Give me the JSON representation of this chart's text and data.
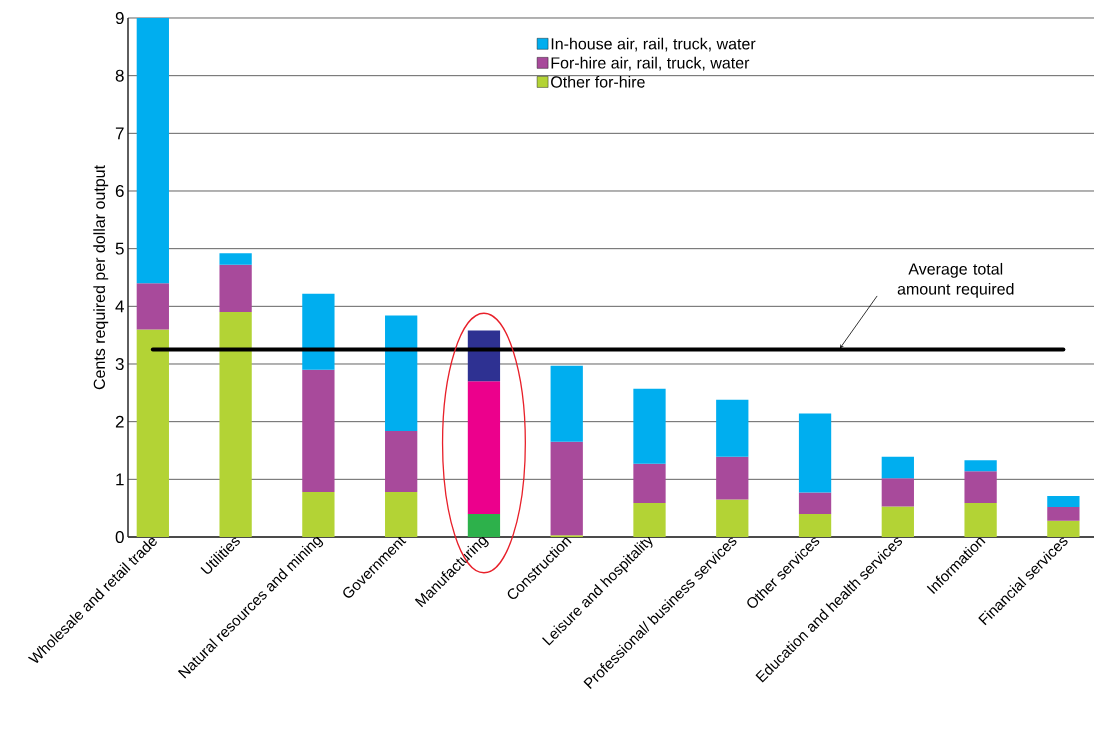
{
  "chart_data": {
    "type": "bar",
    "stacked": true,
    "ylabel": "Cents required per dollar output",
    "categories": [
      "Wholesale and retail trade",
      "Utilities",
      "Natural resources and mining",
      "Government",
      "Manufacturing",
      "Construction",
      "Leisure and hospitality",
      "Professional/ business services",
      "Other services",
      "Education and health services",
      "Information",
      "Financial services"
    ],
    "series": [
      {
        "name": "Other for-hire",
        "color": "#b3d335",
        "values": [
          3.6,
          3.9,
          0.78,
          0.78,
          0.4,
          0.03,
          0.59,
          0.65,
          0.4,
          0.53,
          0.59,
          0.28
        ],
        "colors": [
          "#b3d335",
          "#b3d335",
          "#b3d335",
          "#b3d335",
          "#2db14b",
          "#b3d335",
          "#b3d335",
          "#b3d335",
          "#b3d335",
          "#b3d335",
          "#b3d335",
          "#b3d335"
        ]
      },
      {
        "name": "For-hire air, rail, truck, water",
        "color": "#a84a9b",
        "values": [
          0.8,
          0.82,
          2.12,
          1.06,
          2.3,
          1.62,
          0.68,
          0.74,
          0.37,
          0.49,
          0.55,
          0.24
        ],
        "colors": [
          "#a84a9b",
          "#a84a9b",
          "#a84a9b",
          "#a84a9b",
          "#ec008c",
          "#a84a9b",
          "#a84a9b",
          "#a84a9b",
          "#a84a9b",
          "#a84a9b",
          "#a84a9b",
          "#a84a9b"
        ]
      },
      {
        "name": "In-house air, rail, truck, water",
        "color": "#00aeef",
        "values": [
          4.6,
          0.2,
          1.32,
          2.0,
          0.88,
          1.32,
          1.3,
          0.99,
          1.37,
          0.37,
          0.19,
          0.19
        ],
        "colors": [
          "#00aeef",
          "#00aeef",
          "#00aeef",
          "#00aeef",
          "#2e3192",
          "#00aeef",
          "#00aeef",
          "#00aeef",
          "#00aeef",
          "#00aeef",
          "#00aeef",
          "#00aeef"
        ]
      }
    ],
    "ylim": [
      0,
      9
    ],
    "yticks": [
      0,
      1,
      2,
      3,
      4,
      5,
      6,
      7,
      8,
      9
    ],
    "grid": "y",
    "legend": "top",
    "ref_lines": [
      {
        "axis": "y",
        "value": 3.25,
        "label": "Average total amount required",
        "color": "#000000"
      }
    ]
  }
}
